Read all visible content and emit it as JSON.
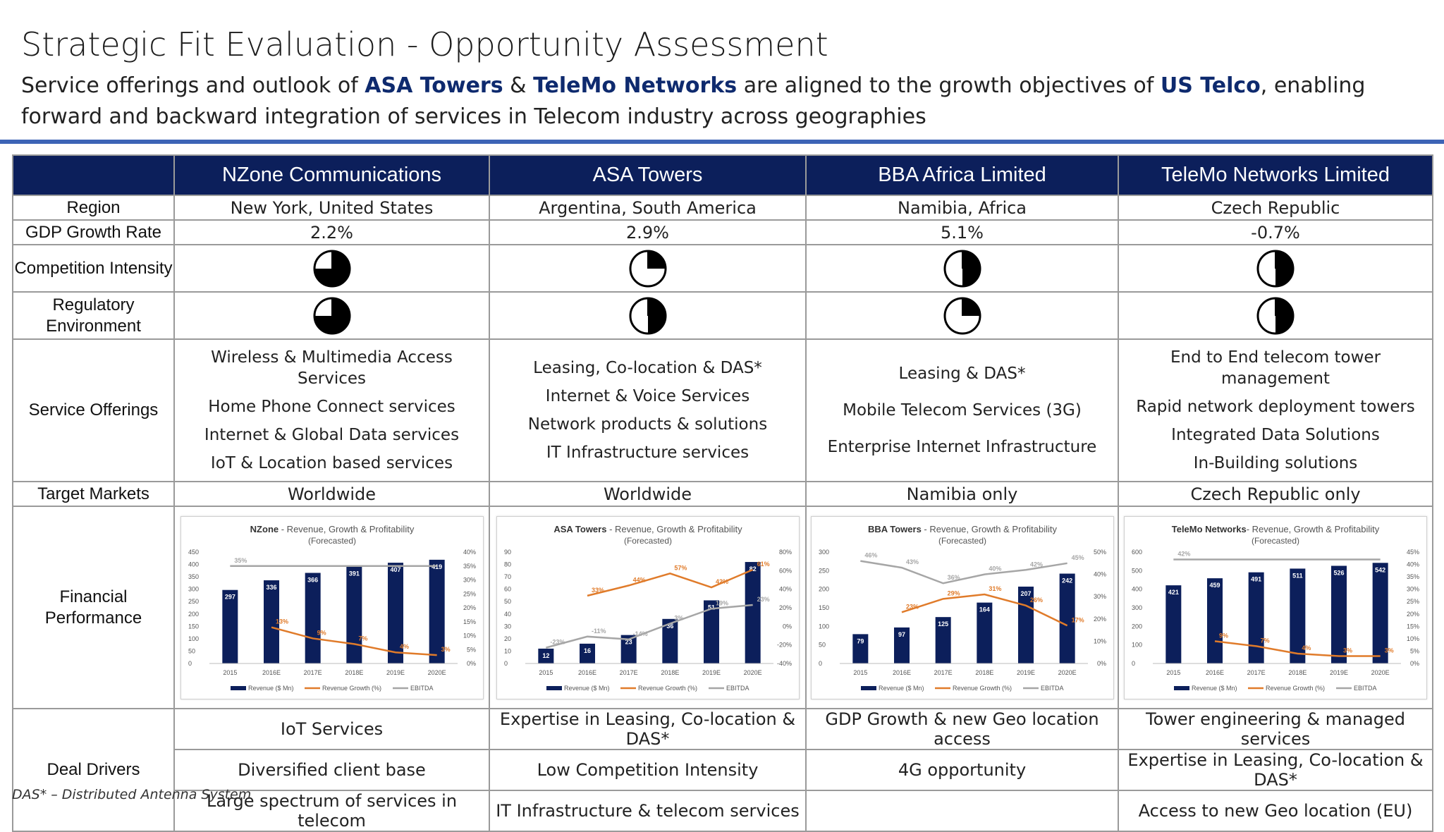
{
  "header": {
    "title": "Strategic Fit Evaluation - Opportunity Assessment",
    "subtitle_part1": "Service offerings and outlook of ",
    "subtitle_company1": "ASA Towers",
    "subtitle_amp": " & ",
    "subtitle_company2": "TeleMo Networks",
    "subtitle_part2": " are aligned to the growth objectives of ",
    "subtitle_company3": "US Telco",
    "subtitle_part3": ", enabling forward and backward integration of services in Telecom industry across geographies"
  },
  "colors": {
    "navy": "#0c1f5b",
    "orange": "#e07b2a",
    "gray": "#a6a6a6",
    "rule": "#3d64b6"
  },
  "companies": [
    {
      "name": "NZone Communications",
      "region": "New York, United States",
      "gdp": "2.2%",
      "competition": 0.75,
      "regulatory": 0.75,
      "offerings": [
        "Wireless & Multimedia Access Services",
        "Home Phone Connect services",
        "Internet & Global Data services",
        "IoT & Location based services"
      ],
      "target": "Worldwide",
      "drivers": [
        "IoT Services",
        "Diversified client base",
        "Large spectrum of services in telecom"
      ]
    },
    {
      "name": "ASA Towers",
      "region": "Argentina, South America",
      "gdp": "2.9%",
      "competition": 0.25,
      "regulatory": 0.5,
      "offerings": [
        "Leasing, Co-location & DAS*",
        "Internet & Voice Services",
        "Network products & solutions",
        "IT Infrastructure services"
      ],
      "target": "Worldwide",
      "drivers": [
        "Expertise in Leasing, Co-location & DAS*",
        "Low Competition Intensity",
        "IT Infrastructure & telecom services"
      ]
    },
    {
      "name": "BBA Africa Limited",
      "region": "Namibia, Africa",
      "gdp": "5.1%",
      "competition": 0.5,
      "regulatory": 0.25,
      "offerings": [
        "Leasing & DAS*",
        "Mobile Telecom Services (3G)",
        "Enterprise Internet Infrastructure"
      ],
      "target": "Namibia only",
      "drivers": [
        "GDP Growth & new Geo location access",
        "4G opportunity",
        ""
      ]
    },
    {
      "name": "TeleMo Networks Limited",
      "region": "Czech Republic",
      "gdp": "-0.7%",
      "competition": 0.5,
      "regulatory": 0.5,
      "offerings": [
        "End to End telecom tower management",
        "Rapid network deployment towers",
        "Integrated Data Solutions",
        "In-Building solutions"
      ],
      "target": "Czech Republic only",
      "drivers": [
        "Tower engineering & managed services",
        "Expertise in Leasing, Co-location & DAS*",
        "Access to new Geo location (EU)"
      ]
    }
  ],
  "row_labels": {
    "region": "Region",
    "gdp": "GDP Growth Rate",
    "competition": "Competition Intensity",
    "regulatory": "Regulatory Environment",
    "offerings": "Service Offerings",
    "target": "Target Markets",
    "financial": "Financial Performance",
    "drivers": "Deal Drivers"
  },
  "chart_data": [
    {
      "type": "bar",
      "title_bold": "NZone",
      "title": " - Revenue, Growth & Profitability",
      "subtitle": "(Forecasted)",
      "categories": [
        "2015",
        "2016E",
        "2017E",
        "2018E",
        "2019E",
        "2020E"
      ],
      "series": [
        {
          "name": "Revenue ($ Mn)",
          "values": [
            297,
            336,
            366,
            391,
            407,
            419
          ],
          "labels": [
            "297",
            "336",
            "366",
            "391",
            "407",
            "419"
          ]
        },
        {
          "name": "Revenue Growth (%)",
          "values": [
            null,
            13,
            9,
            7,
            4,
            3
          ],
          "labels": [
            "",
            "13%",
            "9%",
            "7%",
            "4%",
            "3%"
          ]
        },
        {
          "name": "EBITDA",
          "values": [
            35,
            35,
            35,
            35,
            35,
            35
          ],
          "labels": [
            "35%",
            "",
            "",
            "",
            "",
            ""
          ]
        }
      ],
      "ylim": [
        0,
        450
      ],
      "y_ticks": [
        "450",
        "400",
        "350",
        "300",
        "250",
        "200",
        "150",
        "100",
        "50",
        "0"
      ],
      "y2lim": [
        0,
        40
      ],
      "y2_ticks": [
        "40%",
        "35%",
        "30%",
        "25%",
        "20%",
        "15%",
        "10%",
        "5%",
        "0%"
      ],
      "legend": "bottom"
    },
    {
      "type": "bar",
      "title_bold": "ASA Towers",
      "title": " - Revenue, Growth & Profitability",
      "subtitle": "(Forecasted)",
      "categories": [
        "2015",
        "2016E",
        "2017E",
        "2018E",
        "2019E",
        "2020E"
      ],
      "series": [
        {
          "name": "Revenue ($ Mn)",
          "values": [
            12,
            16,
            23,
            36,
            51,
            82
          ],
          "labels": [
            "12",
            "16",
            "23",
            "36",
            "51",
            "82"
          ]
        },
        {
          "name": "Revenue Growth (%)",
          "values": [
            null,
            33,
            44,
            57,
            42,
            61
          ],
          "labels": [
            "",
            "33%",
            "44%",
            "57%",
            "42%",
            "61%"
          ]
        },
        {
          "name": "EBITDA",
          "values": [
            -23,
            -11,
            -14,
            3,
            19,
            23
          ],
          "labels": [
            "-23%",
            "-11%",
            "-14%",
            "3%",
            "19%",
            "23%"
          ]
        }
      ],
      "ylim": [
        0,
        90
      ],
      "y_ticks": [
        "90",
        "80",
        "70",
        "60",
        "50",
        "40",
        "30",
        "20",
        "10",
        "0"
      ],
      "y2lim": [
        -40,
        80
      ],
      "y2_ticks": [
        "80%",
        "60%",
        "40%",
        "20%",
        "0%",
        "-20%",
        "-40%"
      ],
      "legend": "bottom"
    },
    {
      "type": "bar",
      "title_bold": "BBA Towers",
      "title": " - Revenue, Growth & Profitability",
      "subtitle": "(Forecasted)",
      "categories": [
        "2015",
        "2016E",
        "2017E",
        "2018E",
        "2019E",
        "2020E"
      ],
      "series": [
        {
          "name": "Revenue ($ Mn)",
          "values": [
            79,
            97,
            125,
            164,
            207,
            242
          ],
          "labels": [
            "79",
            "97",
            "125",
            "164",
            "207",
            "242"
          ]
        },
        {
          "name": "Revenue Growth (%)",
          "values": [
            null,
            23,
            29,
            31,
            26,
            17
          ],
          "labels": [
            "",
            "23%",
            "29%",
            "31%",
            "26%",
            "17%"
          ]
        },
        {
          "name": "EBITDA",
          "values": [
            46,
            43,
            36,
            40,
            42,
            45
          ],
          "labels": [
            "46%",
            "43%",
            "36%",
            "40%",
            "42%",
            "45%"
          ]
        }
      ],
      "ylim": [
        0,
        300
      ],
      "y_ticks": [
        "300",
        "250",
        "200",
        "150",
        "100",
        "50",
        "0"
      ],
      "y2lim": [
        0,
        50
      ],
      "y2_ticks": [
        "50%",
        "40%",
        "30%",
        "20%",
        "10%",
        "0%"
      ],
      "legend": "bottom"
    },
    {
      "type": "bar",
      "title_bold": "TeleMo Networks",
      "title": "- Revenue, Growth & Profitability",
      "subtitle": "(Forecasted)",
      "categories": [
        "2015",
        "2016E",
        "2017E",
        "2018E",
        "2019E",
        "2020E"
      ],
      "series": [
        {
          "name": "Revenue ($ Mn)",
          "values": [
            421,
            459,
            491,
            511,
            526,
            542
          ],
          "labels": [
            "421",
            "459",
            "491",
            "511",
            "526",
            "542"
          ]
        },
        {
          "name": "Revenue Growth (%)",
          "values": [
            null,
            9,
            7,
            4,
            3,
            3
          ],
          "labels": [
            "",
            "9%",
            "7%",
            "4%",
            "3%",
            "3%"
          ]
        },
        {
          "name": "EBITDA",
          "values": [
            42,
            42,
            42,
            42,
            42,
            42
          ],
          "labels": [
            "42%",
            "",
            "",
            "",
            "",
            ""
          ]
        }
      ],
      "ylim": [
        0,
        600
      ],
      "y_ticks": [
        "600",
        "500",
        "400",
        "300",
        "200",
        "100",
        "0"
      ],
      "y2lim": [
        0,
        45
      ],
      "y2_ticks": [
        "45%",
        "40%",
        "35%",
        "30%",
        "25%",
        "20%",
        "15%",
        "10%",
        "5%",
        "0%"
      ],
      "legend": "bottom"
    }
  ],
  "footnote": "DAS* – Distributed Antenna System"
}
